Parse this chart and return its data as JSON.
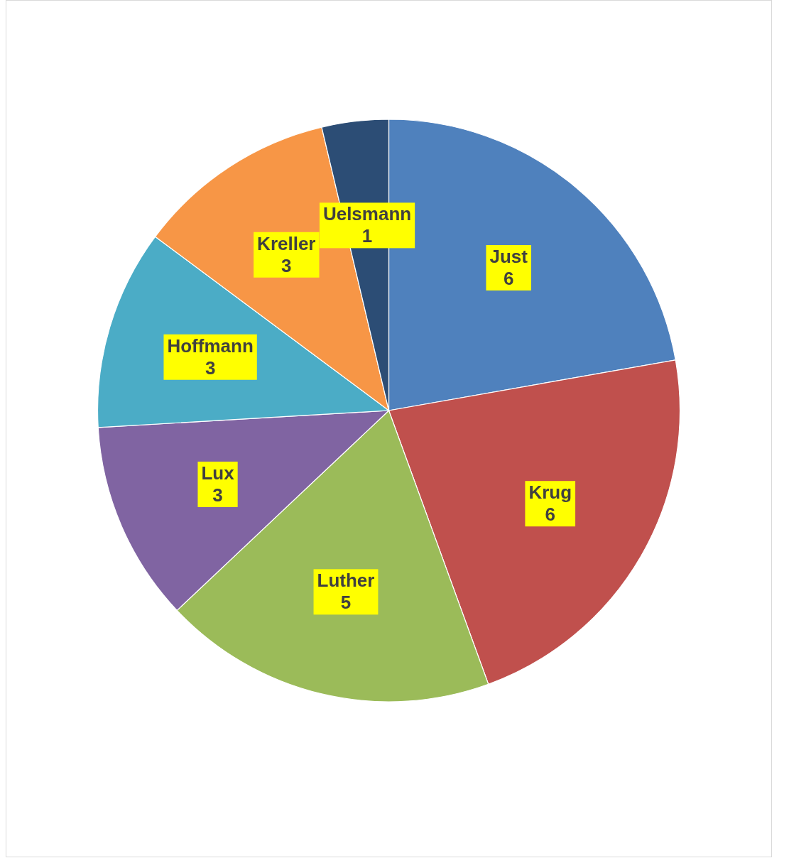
{
  "chart_data": {
    "type": "pie",
    "categories": [
      "Just",
      "Krug",
      "Luther",
      "Lux",
      "Hoffmann",
      "Kreller",
      "Uelsmann"
    ],
    "values": [
      6,
      6,
      5,
      3,
      3,
      3,
      1
    ],
    "colors": [
      "#4f81bd",
      "#c0504d",
      "#9bbb59",
      "#8064a2",
      "#4bacc6",
      "#f79646",
      "#2c4d75"
    ],
    "data_labels": true
  }
}
